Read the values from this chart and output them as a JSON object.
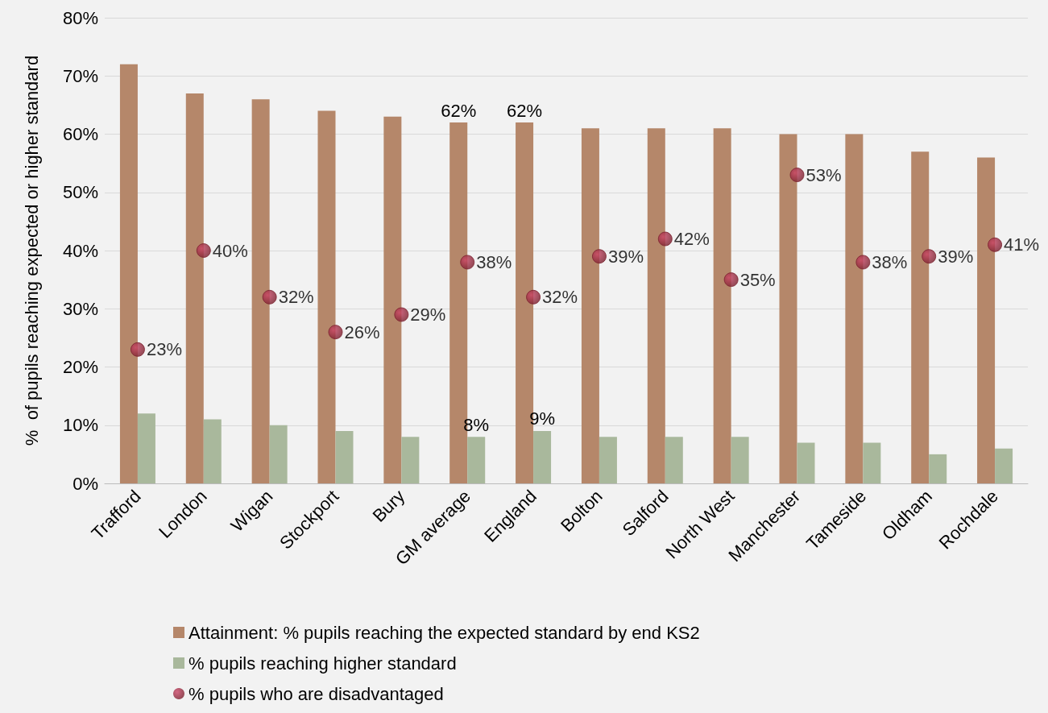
{
  "chart_data": {
    "type": "bar",
    "ylabel": "%  of pupils reaching expected or higher standard",
    "categories": [
      "Trafford",
      "London",
      "Wigan",
      "Stockport",
      "Bury",
      "GM average",
      "England",
      "Bolton",
      "Salford",
      "North West",
      "Manchester",
      "Tameside",
      "Oldham",
      "Rochdale"
    ],
    "series": [
      {
        "name": "Attainment: % pupils reaching the expected standard by end KS2",
        "color": "#b5876a",
        "values": [
          72,
          67,
          66,
          64,
          63,
          62,
          62,
          61,
          61,
          61,
          60,
          60,
          57,
          56
        ],
        "value_labels": [
          null,
          null,
          null,
          null,
          null,
          "62%",
          "62%",
          null,
          null,
          null,
          null,
          null,
          null,
          null
        ]
      },
      {
        "name": "% pupils reaching higher standard",
        "color": "#a9b89c",
        "values": [
          12,
          11,
          10,
          9,
          8,
          8,
          9,
          8,
          8,
          8,
          7,
          7,
          5,
          6
        ],
        "value_labels": [
          null,
          null,
          null,
          null,
          null,
          "8%",
          "9%",
          null,
          null,
          null,
          null,
          null,
          null,
          null
        ]
      },
      {
        "name": "% pupils who are disadvantaged",
        "type": "scatter",
        "color": "#7a1f2d",
        "marker": "circle",
        "x": [
          "Trafford",
          "London",
          "Wigan",
          "Stockport",
          "Bury",
          "GM average",
          "England",
          "Bolton",
          "Salford",
          "North West",
          "Manchester",
          "Tameside",
          "Oldham",
          "Rochdale"
        ],
        "values": [
          23,
          40,
          32,
          26,
          29,
          38,
          32,
          39,
          42,
          35,
          53,
          38,
          39,
          41
        ],
        "value_labels": [
          "23%",
          "40%",
          "32%",
          "26%",
          "29%",
          "38%",
          "32%",
          "39%",
          "42%",
          "35%",
          "53%",
          "38%",
          "39%",
          "41%"
        ]
      }
    ],
    "ylim": [
      0,
      80
    ],
    "yticks": [
      {
        "value": 0,
        "label": "0%"
      },
      {
        "value": 10,
        "label": "10%"
      },
      {
        "value": 20,
        "label": "20%"
      },
      {
        "value": 30,
        "label": "30%"
      },
      {
        "value": 40,
        "label": "40%"
      },
      {
        "value": 50,
        "label": "50%"
      },
      {
        "value": 60,
        "label": "60%"
      },
      {
        "value": 70,
        "label": "70%"
      },
      {
        "value": 80,
        "label": "80%"
      }
    ],
    "grid": "y",
    "legend": "bottom"
  }
}
